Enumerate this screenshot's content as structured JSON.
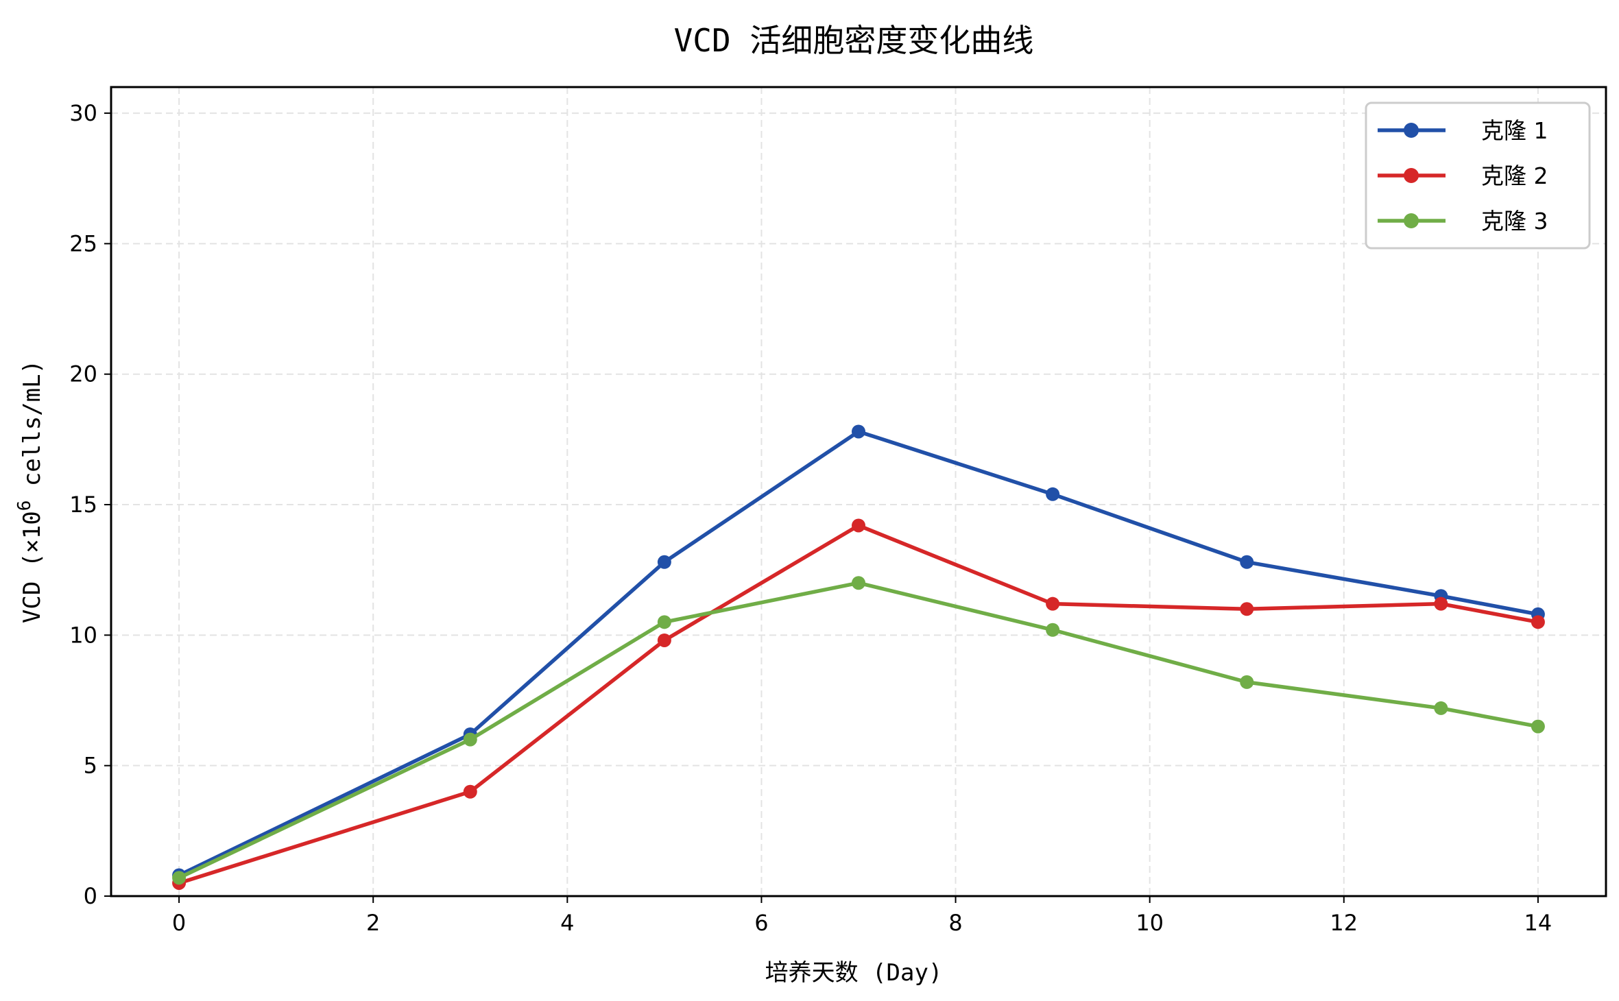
{
  "chart_data": {
    "type": "line",
    "title": "VCD 活细胞密度变化曲线",
    "xlabel": "培养天数 (Day)",
    "ylabel_prefix": "VCD (×10",
    "ylabel_exponent": "6",
    "ylabel_suffix": " cells/mL)",
    "xlim": [
      -0.7,
      14.7
    ],
    "ylim": [
      0,
      31
    ],
    "xticks": [
      0,
      2,
      4,
      6,
      8,
      10,
      12,
      14
    ],
    "yticks": [
      0,
      5,
      10,
      15,
      20,
      25,
      30
    ],
    "grid": true,
    "legend_position": "top-right",
    "x": [
      0,
      3,
      5,
      7,
      9,
      11,
      13,
      14
    ],
    "series": [
      {
        "name": "克隆 1",
        "color": "#2150a8",
        "values": [
          0.8,
          6.2,
          12.8,
          17.8,
          15.4,
          12.8,
          11.5,
          10.8
        ]
      },
      {
        "name": "克隆 2",
        "color": "#d62728",
        "values": [
          0.5,
          4.0,
          9.8,
          14.2,
          11.2,
          11.0,
          11.2,
          10.5
        ]
      },
      {
        "name": "克隆 3",
        "color": "#70ad47",
        "values": [
          0.7,
          6.0,
          10.5,
          12.0,
          10.2,
          8.2,
          7.2,
          6.5
        ]
      }
    ]
  }
}
